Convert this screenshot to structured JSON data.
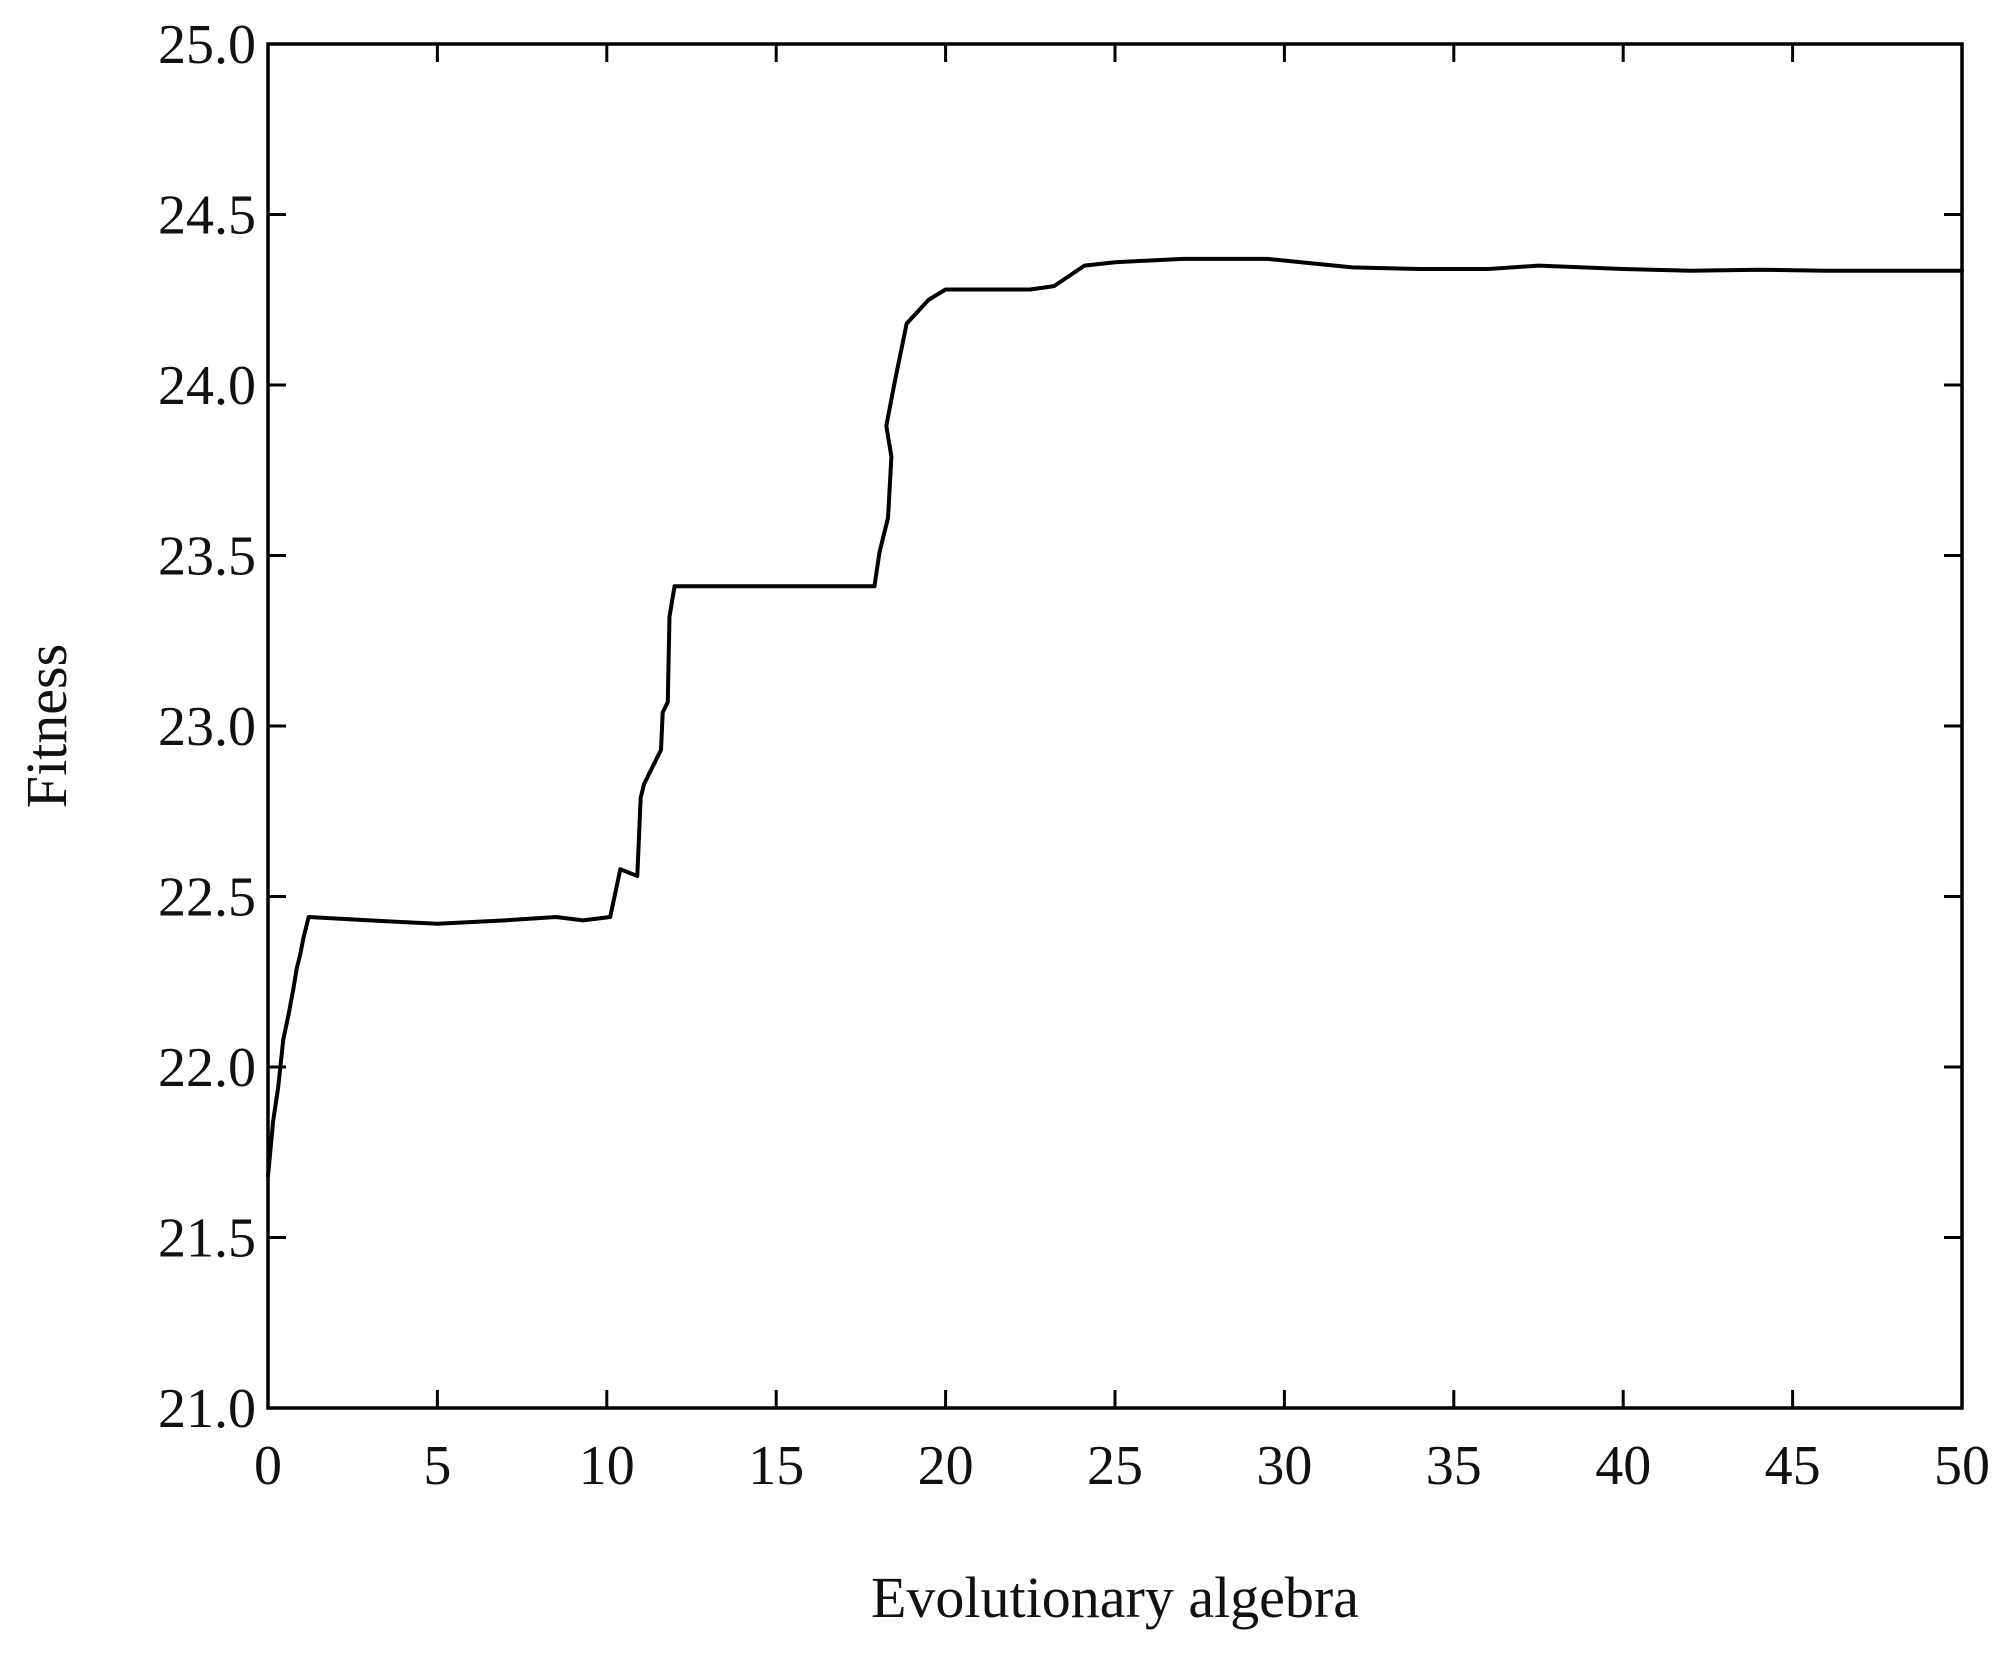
{
  "chart_data": {
    "type": "line",
    "title": "",
    "xlabel": "Evolutionary algebra",
    "ylabel": "Fitness",
    "xlim": [
      0,
      50
    ],
    "ylim": [
      21.0,
      25.0
    ],
    "xticks": [
      0,
      5,
      10,
      15,
      20,
      25,
      30,
      35,
      40,
      45,
      50
    ],
    "xtick_labels": [
      "0",
      "5",
      "10",
      "15",
      "20",
      "25",
      "30",
      "35",
      "40",
      "45",
      "50"
    ],
    "yticks": [
      21.0,
      21.5,
      22.0,
      22.5,
      23.0,
      23.5,
      24.0,
      24.5,
      25.0
    ],
    "ytick_labels": [
      "21.0",
      "21.5",
      "22.0",
      "22.5",
      "23.0",
      "23.5",
      "24.0",
      "24.5",
      "25.0"
    ],
    "grid": false,
    "legend": "none",
    "colors": {
      "line": "#000000",
      "axes": "#000000"
    },
    "series": [
      {
        "x": [
          0,
          0.15,
          0.3,
          0.45,
          0.6,
          0.75,
          0.85,
          0.95,
          1.05,
          1.2,
          3,
          5,
          7,
          8.5,
          9.3,
          10.1,
          10.4,
          10.9,
          11.0,
          11.1,
          11.6,
          11.65,
          11.8,
          11.85,
          12.0,
          14,
          16.5,
          17.9,
          18.05,
          18.3,
          18.4,
          18.25,
          18.5,
          18.85,
          19.5,
          20.0,
          21,
          22.5,
          23.2,
          24.1,
          25,
          27,
          29.5,
          32,
          34,
          36,
          37.5,
          40,
          42,
          44,
          46,
          48,
          50
        ],
        "y": [
          21.68,
          21.84,
          21.94,
          22.08,
          22.15,
          22.23,
          22.29,
          22.33,
          22.38,
          22.44,
          22.43,
          22.42,
          22.43,
          22.44,
          22.43,
          22.44,
          22.58,
          22.56,
          22.79,
          22.83,
          22.93,
          23.04,
          23.07,
          23.32,
          23.41,
          23.41,
          23.41,
          23.41,
          23.51,
          23.61,
          23.79,
          23.88,
          24.01,
          24.18,
          24.25,
          24.28,
          24.28,
          24.28,
          24.29,
          24.35,
          24.36,
          24.37,
          24.37,
          24.345,
          24.34,
          24.34,
          24.35,
          24.34,
          24.335,
          24.338,
          24.335,
          24.335,
          24.335
        ]
      }
    ]
  }
}
